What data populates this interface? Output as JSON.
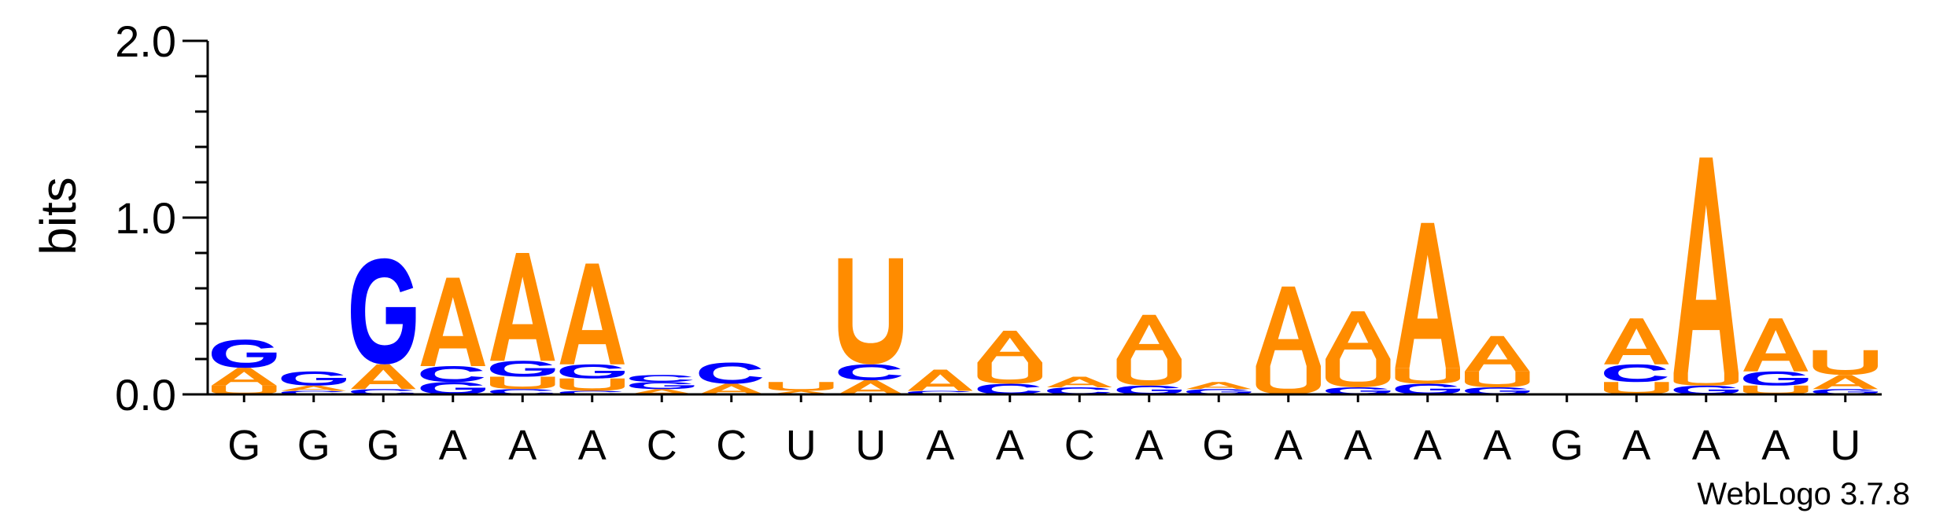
{
  "chart_data": {
    "type": "sequence-logo",
    "ylabel": "bits",
    "ylim": [
      0,
      2.0
    ],
    "yticks": [
      "0.0",
      "1.0",
      "2.0"
    ],
    "credit": "WebLogo 3.7.8",
    "colors": {
      "A": "#ff8c00",
      "U": "#ff8c00",
      "G": "#0000ff",
      "C": "#0000ff"
    },
    "positions": [
      {
        "label": "G",
        "stack": [
          {
            "l": "U",
            "h": 0.05
          },
          {
            "l": "A",
            "h": 0.1
          },
          {
            "l": "G",
            "h": 0.16
          }
        ]
      },
      {
        "label": "G",
        "stack": [
          {
            "l": "C",
            "h": 0.02
          },
          {
            "l": "A",
            "h": 0.03
          },
          {
            "l": "G",
            "h": 0.08
          }
        ]
      },
      {
        "label": "G",
        "stack": [
          {
            "l": "C",
            "h": 0.03
          },
          {
            "l": "A",
            "h": 0.14
          },
          {
            "l": "G",
            "h": 0.6
          }
        ]
      },
      {
        "label": "A",
        "stack": [
          {
            "l": "G",
            "h": 0.07
          },
          {
            "l": "C",
            "h": 0.09
          },
          {
            "l": "A",
            "h": 0.5
          }
        ]
      },
      {
        "label": "A",
        "stack": [
          {
            "l": "C",
            "h": 0.03
          },
          {
            "l": "U",
            "h": 0.07
          },
          {
            "l": "G",
            "h": 0.09
          },
          {
            "l": "A",
            "h": 0.61
          }
        ]
      },
      {
        "label": "A",
        "stack": [
          {
            "l": "C",
            "h": 0.02
          },
          {
            "l": "U",
            "h": 0.07
          },
          {
            "l": "G",
            "h": 0.08
          },
          {
            "l": "A",
            "h": 0.57
          }
        ]
      },
      {
        "label": "C",
        "stack": [
          {
            "l": "A",
            "h": 0.03
          },
          {
            "l": "G",
            "h": 0.04
          },
          {
            "l": "C",
            "h": 0.04
          }
        ]
      },
      {
        "label": "C",
        "stack": [
          {
            "l": "A",
            "h": 0.06
          },
          {
            "l": "C",
            "h": 0.12
          }
        ]
      },
      {
        "label": "U",
        "stack": [
          {
            "l": "A",
            "h": 0.02
          },
          {
            "l": "U",
            "h": 0.05
          }
        ]
      },
      {
        "label": "U",
        "stack": [
          {
            "l": "A",
            "h": 0.08
          },
          {
            "l": "C",
            "h": 0.09
          },
          {
            "l": "U",
            "h": 0.6
          }
        ]
      },
      {
        "label": "A",
        "stack": [
          {
            "l": "C",
            "h": 0.02
          },
          {
            "l": "A",
            "h": 0.12
          }
        ]
      },
      {
        "label": "A",
        "stack": [
          {
            "l": "C",
            "h": 0.06
          },
          {
            "l": "U",
            "h": 0.12
          },
          {
            "l": "A",
            "h": 0.18
          }
        ]
      },
      {
        "label": "C",
        "stack": [
          {
            "l": "C",
            "h": 0.04
          },
          {
            "l": "A",
            "h": 0.06
          }
        ]
      },
      {
        "label": "A",
        "stack": [
          {
            "l": "G",
            "h": 0.05
          },
          {
            "l": "U",
            "h": 0.15
          },
          {
            "l": "A",
            "h": 0.25
          }
        ]
      },
      {
        "label": "G",
        "stack": [
          {
            "l": "G",
            "h": 0.03
          },
          {
            "l": "A",
            "h": 0.04
          }
        ]
      },
      {
        "label": "A",
        "stack": [
          {
            "l": "U",
            "h": 0.16
          },
          {
            "l": "A",
            "h": 0.45
          }
        ]
      },
      {
        "label": "A",
        "stack": [
          {
            "l": "G",
            "h": 0.04
          },
          {
            "l": "U",
            "h": 0.16
          },
          {
            "l": "A",
            "h": 0.27
          }
        ]
      },
      {
        "label": "A",
        "stack": [
          {
            "l": "G",
            "h": 0.06
          },
          {
            "l": "U",
            "h": 0.09
          },
          {
            "l": "A",
            "h": 0.82
          }
        ]
      },
      {
        "label": "A",
        "stack": [
          {
            "l": "G",
            "h": 0.04
          },
          {
            "l": "U",
            "h": 0.09
          },
          {
            "l": "A",
            "h": 0.2
          }
        ]
      },
      {
        "label": "G",
        "stack": []
      },
      {
        "label": "A",
        "stack": [
          {
            "l": "U",
            "h": 0.07
          },
          {
            "l": "C",
            "h": 0.1
          },
          {
            "l": "A",
            "h": 0.26
          }
        ]
      },
      {
        "label": "A",
        "stack": [
          {
            "l": "G",
            "h": 0.05
          },
          {
            "l": "U",
            "h": 0.07
          },
          {
            "l": "A",
            "h": 1.22
          }
        ]
      },
      {
        "label": "A",
        "stack": [
          {
            "l": "U",
            "h": 0.05
          },
          {
            "l": "G",
            "h": 0.08
          },
          {
            "l": "A",
            "h": 0.3
          }
        ]
      },
      {
        "label": "U",
        "stack": [
          {
            "l": "G",
            "h": 0.03
          },
          {
            "l": "A",
            "h": 0.08
          },
          {
            "l": "U",
            "h": 0.14
          }
        ]
      }
    ]
  }
}
